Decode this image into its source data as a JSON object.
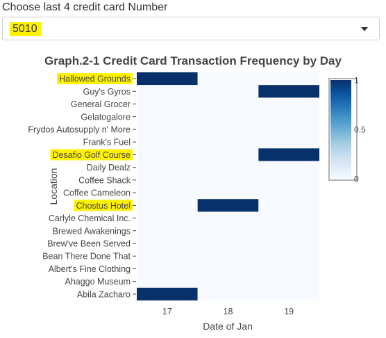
{
  "filter": {
    "label": "Choose last 4 credit card Number",
    "selected_value": "5010"
  },
  "chart_data": {
    "type": "heatmap",
    "title": "Graph.2-1 Credit Card Transaction Frequency by Day",
    "xlabel": "Date of Jan",
    "ylabel": "Location",
    "x": [
      17,
      18,
      19
    ],
    "y": [
      "Hallowed Grounds",
      "Guy's Gyros",
      "General Grocer",
      "Gelatogalore",
      "Frydos Autosupply n' More",
      "Frank's Fuel",
      "Desafio Golf Course",
      "Daily Dealz",
      "Coffee Shack",
      "Coffee Cameleon",
      "Chostus Hotel",
      "Carlyle Chemical Inc.",
      "Brewed Awakenings",
      "Brew've Been Served",
      "Bean There Done That",
      "Albert's Fine Clothing",
      "Ahaggo Museum",
      "Abila Zacharo"
    ],
    "z": [
      [
        1,
        0,
        0
      ],
      [
        0,
        0,
        1
      ],
      [
        0,
        0,
        0
      ],
      [
        0,
        0,
        0
      ],
      [
        0,
        0,
        0
      ],
      [
        0,
        0,
        0
      ],
      [
        0,
        0,
        1
      ],
      [
        0,
        0,
        0
      ],
      [
        0,
        0,
        0
      ],
      [
        0,
        0,
        0
      ],
      [
        0,
        1,
        0
      ],
      [
        0,
        0,
        0
      ],
      [
        0,
        0,
        0
      ],
      [
        0,
        0,
        0
      ],
      [
        0,
        0,
        0
      ],
      [
        0,
        0,
        0
      ],
      [
        0,
        0,
        0
      ],
      [
        1,
        0,
        0
      ]
    ],
    "highlighted_locations": [
      "Hallowed Grounds",
      "Desafio Golf Course",
      "Chostus Hotel"
    ],
    "colorbar": {
      "min": 0,
      "max": 1,
      "ticks": [
        "0",
        "0.5",
        "1"
      ]
    },
    "colors": {
      "low": "#f7fbff",
      "high": "#08306b",
      "highlight": "#fff200"
    },
    "grid": false
  }
}
